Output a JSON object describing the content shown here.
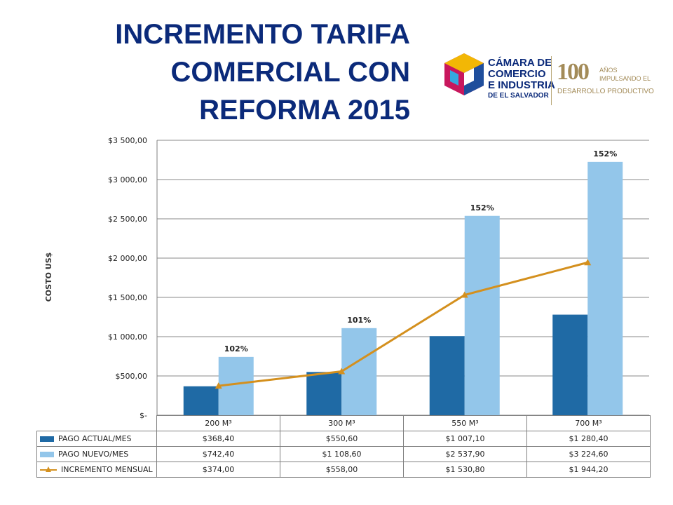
{
  "title_lines": [
    "INCREMENTO TARIFA",
    "COMERCIAL CON",
    "REFORMA 2015"
  ],
  "logo": {
    "org_lines": [
      "CÁMARA DE",
      "COMERCIO",
      "E INDUSTRIA"
    ],
    "org_small": "DE EL SALVADOR",
    "number": "100",
    "anos": "AÑOS",
    "impulsando": "IMPULSANDO EL",
    "slogan": "DESARROLLO PRODUCTIVO"
  },
  "colors": {
    "actual": "#1f6aa5",
    "nuevo": "#93c6ea",
    "increment": "#d4901e",
    "title": "#0b2a7a"
  },
  "chart_data": {
    "type": "bar",
    "title": "",
    "ylabel": "COSTO US$",
    "ylim": [
      0,
      3500
    ],
    "y_ticks": [
      "$-",
      "$500,00",
      "$1 000,00",
      "$1 500,00",
      "$2 000,00",
      "$2 500,00",
      "$3 000,00",
      "$3 500,00"
    ],
    "y_tick_values": [
      0,
      500,
      1000,
      1500,
      2000,
      2500,
      3000,
      3500
    ],
    "categories": [
      "200 M³",
      "300 M³",
      "550 M³",
      "700 M³"
    ],
    "series": [
      {
        "name": "PAGO ACTUAL/MES",
        "kind": "bar",
        "values": [
          368.4,
          550.6,
          1007.1,
          1280.4
        ],
        "labels": [
          "$368,40",
          "$550,60",
          "$1 007,10",
          "$1 280,40"
        ]
      },
      {
        "name": "PAGO NUEVO/MES",
        "kind": "bar",
        "values": [
          742.4,
          1108.6,
          2537.9,
          3224.6
        ],
        "labels": [
          "$742,40",
          "$1 108,60",
          "$2 537,90",
          "$3 224,60"
        ]
      },
      {
        "name": "INCREMENTO MENSUAL",
        "kind": "line",
        "values": [
          374.0,
          558.0,
          1530.8,
          1944.2
        ],
        "labels": [
          "$374,00",
          "$558,00",
          "$1 530,80",
          "$1 944,20"
        ]
      }
    ],
    "annotations": [
      "102%",
      "101%",
      "152%",
      "152%"
    ],
    "grid": true,
    "legend": "data table below chart"
  }
}
